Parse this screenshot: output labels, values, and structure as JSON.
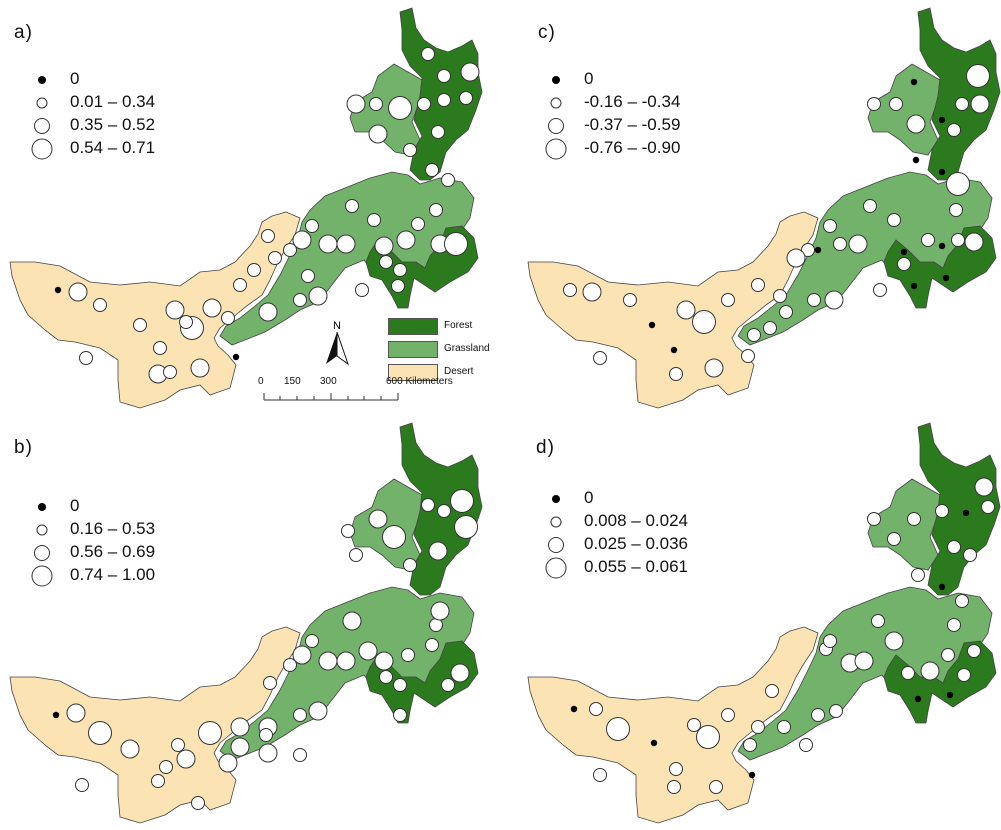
{
  "colors": {
    "forest": "#2c7a1e",
    "grassland": "#73b26b",
    "desert": "#fce3b4",
    "border": "#444444"
  },
  "panels": [
    {
      "label": "a)",
      "legend": [
        "0",
        "0.01 – 0.34",
        "0.35 – 0.52",
        "0.54 – 0.71"
      ]
    },
    {
      "label": "b)",
      "legend": [
        "0",
        "0.16 – 0.53",
        "0.56 – 0.69",
        "0.74 – 1.00"
      ]
    },
    {
      "label": "c)",
      "legend": [
        "0",
        "-0.16 – -0.34",
        "-0.37 – -0.59",
        "-0.76 – -0.90"
      ]
    },
    {
      "label": "d)",
      "legend": [
        "0",
        "0.008 – 0.024",
        "0.025 – 0.036",
        "0.055 – 0.061"
      ]
    }
  ],
  "cover_legend": [
    "Forest",
    "Grassland",
    "Desert"
  ],
  "north_arrow": "N",
  "scale_bar": {
    "ticks": [
      "0",
      "150",
      "300",
      "600 Kilometers"
    ]
  }
}
